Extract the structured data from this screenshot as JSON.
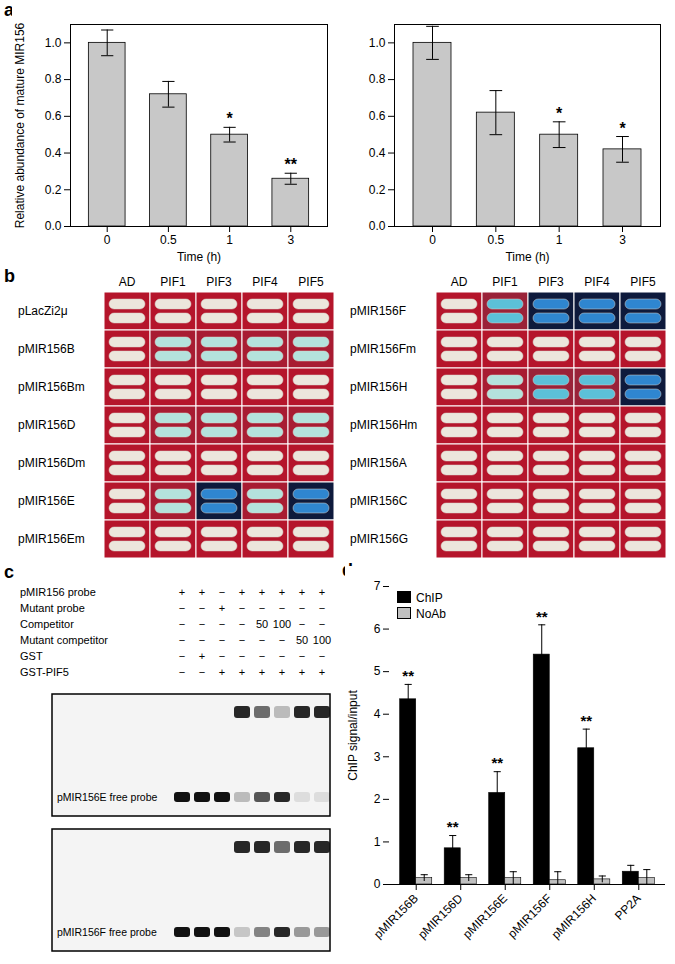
{
  "chart_data": [
    {
      "type": "bar",
      "title": "a",
      "categories": [
        "0",
        "0.5",
        "1",
        "3"
      ],
      "values": [
        1.0,
        0.72,
        0.5,
        0.26
      ],
      "errors": [
        0.07,
        0.07,
        0.04,
        0.03
      ],
      "annotations": [
        null,
        null,
        "*",
        "**"
      ],
      "x_label": "Time (h)",
      "y_label": "Relative abundance of mature MIR156",
      "ylim": [
        0,
        1.1
      ],
      "yticks": [
        {
          "value": 0,
          "label": "0.0"
        },
        {
          "value": 0.2,
          "label": "0.2"
        },
        {
          "value": 0.4,
          "label": "0.4"
        },
        {
          "value": 0.6,
          "label": "0.6"
        },
        {
          "value": 0.8,
          "label": "0.8"
        },
        {
          "value": 1,
          "label": "1.0"
        }
      ],
      "color": "#c8c8c8"
    },
    {
      "type": "bar",
      "categories": [
        "0",
        "0.5",
        "1",
        "3"
      ],
      "values": [
        1.0,
        0.62,
        0.5,
        0.42
      ],
      "errors": [
        0.09,
        0.12,
        0.07,
        0.07
      ],
      "annotations": [
        null,
        null,
        "*",
        "*"
      ],
      "x_label": "Time (h)",
      "ylim": [
        0,
        1.1
      ],
      "yticks": [
        {
          "value": 0,
          "label": "0.0"
        },
        {
          "value": 0.2,
          "label": "0.2"
        },
        {
          "value": 0.4,
          "label": "0.4"
        },
        {
          "value": 0.6,
          "label": "0.6"
        },
        {
          "value": 0.8,
          "label": "0.8"
        },
        {
          "value": 1,
          "label": "1.0"
        }
      ],
      "color": "#c8c8c8"
    },
    {
      "type": "bar",
      "title": "d",
      "categories": [
        "pMIR156B",
        "pMIR156D",
        "pMIR156E",
        "pMIR156F",
        "pMIR156H",
        "PP2A"
      ],
      "series": [
        {
          "name": "ChIP",
          "color": "#000000",
          "values": [
            4.35,
            0.85,
            2.15,
            5.4,
            3.2,
            0.3
          ],
          "errors": [
            0.35,
            0.3,
            0.5,
            0.7,
            0.45,
            0.15
          ],
          "annotations": [
            "**",
            "**",
            "**",
            "**",
            "**",
            null
          ]
        },
        {
          "name": "NoAb",
          "color": "#c0c0c0",
          "values": [
            0.15,
            0.15,
            0.15,
            0.1,
            0.12,
            0.15
          ],
          "errors": [
            0.08,
            0.08,
            0.15,
            0.2,
            0.08,
            0.2
          ]
        }
      ],
      "y_label": "ChIP signal/input",
      "ylim": [
        0,
        7
      ],
      "yticks": [
        0,
        1,
        2,
        3,
        4,
        5,
        6,
        7
      ],
      "legend": "top-left"
    }
  ],
  "panel_b": {
    "title": "b",
    "columns": [
      "AD",
      "PIF1",
      "PIF3",
      "PIF4",
      "PIF5"
    ],
    "tables": [
      {
        "rows": [
          {
            "label": "pLacZi2μ",
            "signal": [
              0,
              0,
              0,
              0,
              0
            ]
          },
          {
            "label": "pMIR156B",
            "signal": [
              0,
              1,
              1,
              1,
              1
            ]
          },
          {
            "label": "pMIR156Bm",
            "signal": [
              0,
              0,
              0,
              0,
              0
            ]
          },
          {
            "label": "pMIR156D",
            "signal": [
              0,
              1,
              1,
              1,
              1
            ]
          },
          {
            "label": "pMIR156Dm",
            "signal": [
              0,
              0,
              0,
              0,
              0
            ]
          },
          {
            "label": "pMIR156E",
            "signal": [
              0,
              1,
              3,
              1,
              3
            ]
          },
          {
            "label": "pMIR156Em",
            "signal": [
              0,
              0,
              0,
              0,
              0
            ]
          }
        ]
      },
      {
        "rows": [
          {
            "label": "pMIR156F",
            "signal": [
              0,
              2,
              3,
              3,
              3
            ]
          },
          {
            "label": "pMIR156Fm",
            "signal": [
              0,
              0,
              0,
              0,
              0
            ]
          },
          {
            "label": "pMIR156H",
            "signal": [
              0,
              1,
              2,
              2,
              3
            ]
          },
          {
            "label": "pMIR156Hm",
            "signal": [
              0,
              0,
              0,
              0,
              0
            ]
          },
          {
            "label": "pMIR156A",
            "signal": [
              0,
              0,
              0,
              0,
              0
            ]
          },
          {
            "label": "pMIR156C",
            "signal": [
              0,
              0,
              0,
              0,
              0
            ]
          },
          {
            "label": "pMIR156G",
            "signal": [
              0,
              0,
              0,
              0,
              0
            ]
          }
        ]
      }
    ]
  },
  "panel_c": {
    "title": "c",
    "conditions": [
      {
        "label": "pMIR156 probe",
        "lanes": [
          "+",
          "+",
          "−",
          "+",
          "+",
          "+",
          "+",
          "+"
        ]
      },
      {
        "label": "Mutant probe",
        "lanes": [
          "−",
          "−",
          "+",
          "−",
          "−",
          "−",
          "−",
          "−"
        ]
      },
      {
        "label": "Competitor",
        "lanes": [
          "−",
          "−",
          "−",
          "−",
          "50",
          "100",
          "−",
          "−"
        ]
      },
      {
        "label": "Mutant competitor",
        "lanes": [
          "−",
          "−",
          "−",
          "−",
          "−",
          "−",
          "50",
          "100"
        ]
      },
      {
        "label": "GST",
        "lanes": [
          "−",
          "+",
          "−",
          "−",
          "−",
          "−",
          "−",
          "−"
        ]
      },
      {
        "label": "GST-PIF5",
        "lanes": [
          "−",
          "−",
          "+",
          "+",
          "+",
          "+",
          "+",
          "+"
        ]
      }
    ],
    "gels": [
      {
        "label": "pMIR156E free probe",
        "shifted_band": [
          0,
          0,
          0,
          0.9,
          0.6,
          0.25,
          0.9,
          0.9
        ],
        "free_probe": [
          1,
          1,
          1,
          0.25,
          0.7,
          0.9,
          0.1,
          0.1
        ]
      },
      {
        "label": "pMIR156F free probe",
        "shifted_band": [
          0,
          0,
          0,
          0.9,
          0.9,
          0.6,
          0.9,
          0.9
        ],
        "free_probe": [
          1,
          1,
          1,
          0.2,
          0.5,
          0.9,
          0.4,
          0.4
        ]
      }
    ]
  }
}
